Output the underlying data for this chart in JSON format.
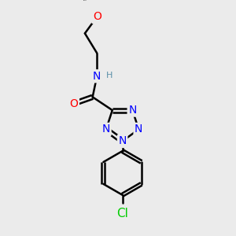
{
  "bg_color": "#ebebeb",
  "atom_colors": {
    "C": "#000000",
    "N": "#0000ff",
    "O": "#ff0000",
    "Cl": "#00cc00",
    "H": "#5b8fa8"
  },
  "bond_color": "#000000",
  "bond_width": 1.8,
  "font_size_atom": 10,
  "font_size_h": 8,
  "font_size_methyl": 9
}
